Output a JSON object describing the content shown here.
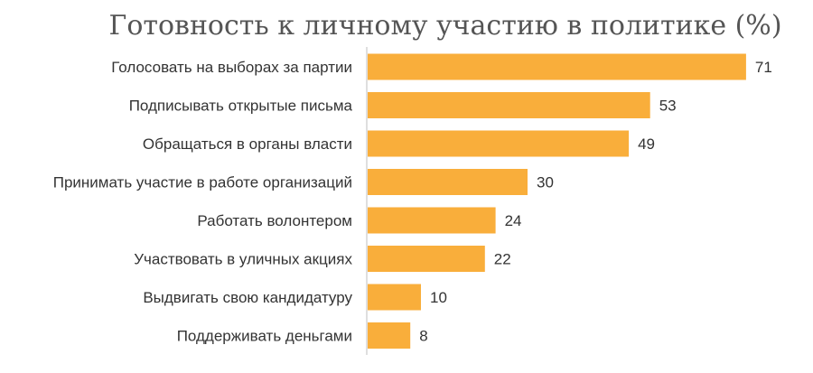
{
  "chart_data": {
    "type": "bar",
    "orientation": "horizontal",
    "title": "Готовность к личному участию в политике (%)",
    "categories": [
      "Голосовать на выборах за партии",
      "Подписывать открытые письма",
      "Обращаться в органы власти",
      "Принимать участие в работе организаций",
      "Работать волонтером",
      "Участвовать в уличных акциях",
      "Выдвигать свою кандидатуру",
      "Поддерживать деньгами"
    ],
    "values": [
      71,
      53,
      49,
      30,
      24,
      22,
      10,
      8
    ],
    "xlabel": "",
    "ylabel": "",
    "xlim": [
      0,
      80
    ],
    "grid": false,
    "data_labels": true,
    "bar_color": "#F9AE3B",
    "axis_color": "#BFBFBF"
  }
}
